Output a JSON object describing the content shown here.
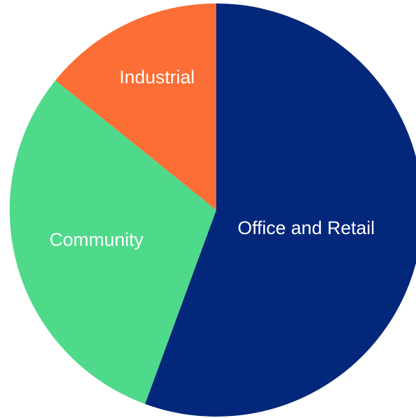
{
  "chart_data": {
    "type": "pie",
    "title": "",
    "start_angle_deg": 0,
    "direction": "clockwise",
    "legend": "none",
    "slices": [
      {
        "label": "Office and Retail",
        "value": 55.6,
        "color": "#03277a"
      },
      {
        "label": "Community",
        "value": 30.2,
        "color": "#4fd98b"
      },
      {
        "label": "Industrial",
        "value": 14.2,
        "color": "#fb6e35"
      }
    ]
  }
}
